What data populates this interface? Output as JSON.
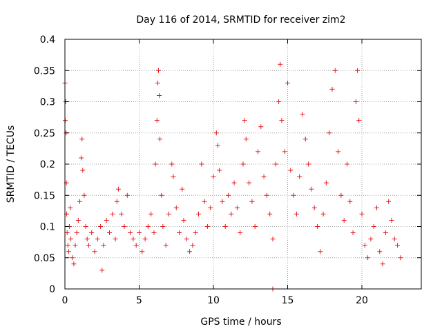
{
  "chart_data": {
    "type": "scatter",
    "title": "Day 116 of 2014, SRMTID for receiver zim2",
    "xlabel": "GPS time / hours",
    "ylabel": "SRMTID / TECUs",
    "xlim": [
      0,
      24
    ],
    "ylim": [
      0,
      0.4
    ],
    "x_ticks": [
      0,
      5,
      10,
      15,
      20
    ],
    "x_tick_labels": [
      "0",
      "5",
      "10",
      "15",
      "20"
    ],
    "y_ticks": [
      0,
      0.05,
      0.1,
      0.15,
      0.2,
      0.25,
      0.3,
      0.35,
      0.4
    ],
    "y_tick_labels": [
      "0",
      "0.05",
      "0.1",
      "0.15",
      "0.2",
      "0.25",
      "0.3",
      "0.35",
      "0.4"
    ],
    "grid": true,
    "marker": "+",
    "color": "#e41a1c",
    "series": [
      {
        "name": "SRMTID",
        "points": [
          [
            0.0,
            0.33
          ],
          [
            0.02,
            0.27
          ],
          [
            0.05,
            0.3
          ],
          [
            0.08,
            0.25
          ],
          [
            0.1,
            0.17
          ],
          [
            0.12,
            0.12
          ],
          [
            0.15,
            0.09
          ],
          [
            0.2,
            0.07
          ],
          [
            0.25,
            0.06
          ],
          [
            0.3,
            0.1
          ],
          [
            0.35,
            0.13
          ],
          [
            0.4,
            0.08
          ],
          [
            0.5,
            0.05
          ],
          [
            0.6,
            0.04
          ],
          [
            0.7,
            0.07
          ],
          [
            0.8,
            0.09
          ],
          [
            0.9,
            0.11
          ],
          [
            1.0,
            0.14
          ],
          [
            1.1,
            0.21
          ],
          [
            1.15,
            0.24
          ],
          [
            1.2,
            0.19
          ],
          [
            1.3,
            0.15
          ],
          [
            1.4,
            0.1
          ],
          [
            1.5,
            0.08
          ],
          [
            1.6,
            0.07
          ],
          [
            1.8,
            0.09
          ],
          [
            2.0,
            0.06
          ],
          [
            2.2,
            0.08
          ],
          [
            2.4,
            0.1
          ],
          [
            2.5,
            0.03
          ],
          [
            2.6,
            0.07
          ],
          [
            2.8,
            0.11
          ],
          [
            3.0,
            0.09
          ],
          [
            3.2,
            0.12
          ],
          [
            3.4,
            0.08
          ],
          [
            3.5,
            0.14
          ],
          [
            3.6,
            0.16
          ],
          [
            3.8,
            0.12
          ],
          [
            4.0,
            0.1
          ],
          [
            4.2,
            0.15
          ],
          [
            4.4,
            0.09
          ],
          [
            4.6,
            0.08
          ],
          [
            4.8,
            0.07
          ],
          [
            5.0,
            0.09
          ],
          [
            5.2,
            0.06
          ],
          [
            5.4,
            0.08
          ],
          [
            5.6,
            0.1
          ],
          [
            5.8,
            0.12
          ],
          [
            6.0,
            0.09
          ],
          [
            6.1,
            0.2
          ],
          [
            6.2,
            0.27
          ],
          [
            6.25,
            0.33
          ],
          [
            6.3,
            0.35
          ],
          [
            6.35,
            0.31
          ],
          [
            6.4,
            0.24
          ],
          [
            6.5,
            0.15
          ],
          [
            6.6,
            0.1
          ],
          [
            6.8,
            0.07
          ],
          [
            7.0,
            0.12
          ],
          [
            7.2,
            0.2
          ],
          [
            7.3,
            0.18
          ],
          [
            7.5,
            0.13
          ],
          [
            7.7,
            0.09
          ],
          [
            7.9,
            0.16
          ],
          [
            8.0,
            0.11
          ],
          [
            8.2,
            0.08
          ],
          [
            8.4,
            0.06
          ],
          [
            8.6,
            0.07
          ],
          [
            8.8,
            0.09
          ],
          [
            9.0,
            0.12
          ],
          [
            9.2,
            0.2
          ],
          [
            9.4,
            0.14
          ],
          [
            9.6,
            0.1
          ],
          [
            9.8,
            0.13
          ],
          [
            10.0,
            0.18
          ],
          [
            10.2,
            0.25
          ],
          [
            10.3,
            0.23
          ],
          [
            10.4,
            0.19
          ],
          [
            10.6,
            0.14
          ],
          [
            10.8,
            0.1
          ],
          [
            11.0,
            0.15
          ],
          [
            11.2,
            0.12
          ],
          [
            11.4,
            0.17
          ],
          [
            11.6,
            0.13
          ],
          [
            11.8,
            0.09
          ],
          [
            12.0,
            0.2
          ],
          [
            12.1,
            0.27
          ],
          [
            12.2,
            0.24
          ],
          [
            12.4,
            0.17
          ],
          [
            12.6,
            0.14
          ],
          [
            12.8,
            0.1
          ],
          [
            13.0,
            0.22
          ],
          [
            13.2,
            0.26
          ],
          [
            13.4,
            0.18
          ],
          [
            13.6,
            0.15
          ],
          [
            13.8,
            0.12
          ],
          [
            14.0,
            0.08
          ],
          [
            14.2,
            0.2
          ],
          [
            14.4,
            0.3
          ],
          [
            14.5,
            0.36
          ],
          [
            14.6,
            0.27
          ],
          [
            14.8,
            0.22
          ],
          [
            15.0,
            0.33
          ],
          [
            15.2,
            0.19
          ],
          [
            15.4,
            0.15
          ],
          [
            15.6,
            0.12
          ],
          [
            15.8,
            0.18
          ],
          [
            16.0,
            0.28
          ],
          [
            16.2,
            0.24
          ],
          [
            16.4,
            0.2
          ],
          [
            16.6,
            0.16
          ],
          [
            16.8,
            0.13
          ],
          [
            17.0,
            0.1
          ],
          [
            17.2,
            0.06
          ],
          [
            17.4,
            0.12
          ],
          [
            17.6,
            0.17
          ],
          [
            17.8,
            0.25
          ],
          [
            18.0,
            0.32
          ],
          [
            18.2,
            0.35
          ],
          [
            18.4,
            0.22
          ],
          [
            18.6,
            0.15
          ],
          [
            18.8,
            0.11
          ],
          [
            19.0,
            0.2
          ],
          [
            19.2,
            0.14
          ],
          [
            19.4,
            0.09
          ],
          [
            19.6,
            0.3
          ],
          [
            19.7,
            0.35
          ],
          [
            19.8,
            0.27
          ],
          [
            20.0,
            0.12
          ],
          [
            20.2,
            0.07
          ],
          [
            20.4,
            0.05
          ],
          [
            20.6,
            0.08
          ],
          [
            20.8,
            0.1
          ],
          [
            21.0,
            0.13
          ],
          [
            21.2,
            0.06
          ],
          [
            21.4,
            0.04
          ],
          [
            21.6,
            0.09
          ],
          [
            21.8,
            0.14
          ],
          [
            22.0,
            0.11
          ],
          [
            22.2,
            0.08
          ],
          [
            22.4,
            0.07
          ],
          [
            22.6,
            0.05
          ],
          [
            14.0,
            0.0
          ]
        ]
      }
    ]
  }
}
